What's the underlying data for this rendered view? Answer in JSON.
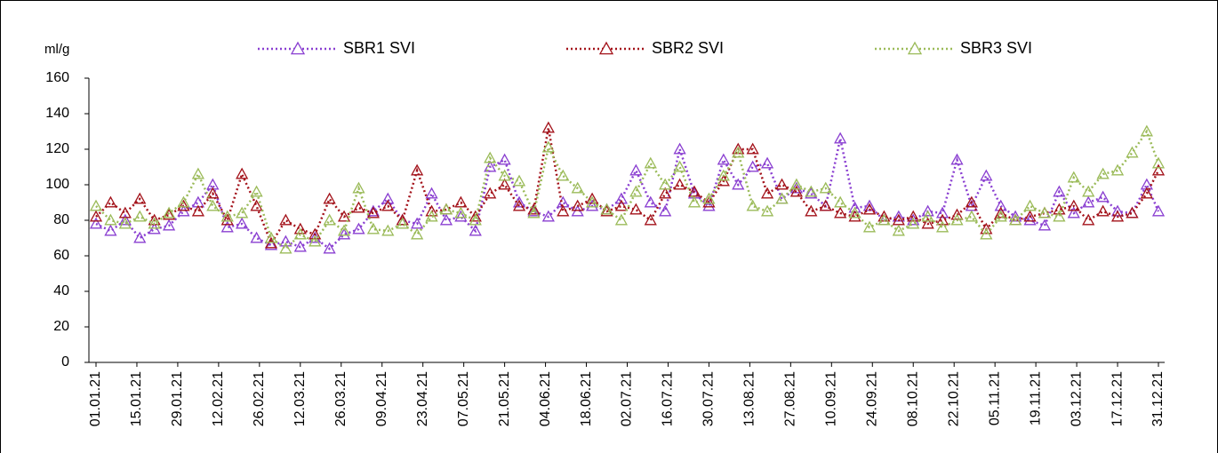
{
  "chart_data": {
    "type": "line",
    "y_label": "ml/g",
    "legend": "top",
    "grid": false,
    "ylim": [
      0,
      160
    ],
    "yticks": [
      0,
      20,
      40,
      60,
      80,
      100,
      120,
      140,
      160
    ],
    "xlim": [
      "01.01.21",
      "31.12.21"
    ],
    "xticks": [
      "01.01.21",
      "15.01.21",
      "29.01.21",
      "12.02.21",
      "26.02.21",
      "12.03.21",
      "26.03.21",
      "09.04.21",
      "23.04.21",
      "07.05.21",
      "21.05.21",
      "04.06.21",
      "18.06.21",
      "02.07.21",
      "16.07.21",
      "30.07.21",
      "13.08.21",
      "27.08.21",
      "10.09.21",
      "24.09.21",
      "08.10.21",
      "22.10.21",
      "05.11.21",
      "19.11.21",
      "03.12.21",
      "17.12.21",
      "31.12.21"
    ],
    "x": [
      "01.01.21",
      "06.01.21",
      "11.01.21",
      "16.01.21",
      "21.01.21",
      "26.01.21",
      "31.01.21",
      "05.02.21",
      "10.02.21",
      "15.02.21",
      "20.02.21",
      "25.02.21",
      "02.03.21",
      "07.03.21",
      "12.03.21",
      "17.03.21",
      "22.03.21",
      "27.03.21",
      "01.04.21",
      "06.04.21",
      "11.04.21",
      "16.04.21",
      "21.04.21",
      "26.04.21",
      "01.05.21",
      "06.05.21",
      "11.05.21",
      "16.05.21",
      "21.05.21",
      "26.05.21",
      "31.05.21",
      "05.06.21",
      "10.06.21",
      "15.06.21",
      "20.06.21",
      "25.06.21",
      "30.06.21",
      "05.07.21",
      "10.07.21",
      "15.07.21",
      "20.07.21",
      "25.07.21",
      "30.07.21",
      "04.08.21",
      "09.08.21",
      "14.08.21",
      "19.08.21",
      "24.08.21",
      "29.08.21",
      "03.09.21",
      "08.09.21",
      "13.09.21",
      "18.09.21",
      "23.09.21",
      "28.09.21",
      "03.10.21",
      "08.10.21",
      "13.10.21",
      "18.10.21",
      "23.10.21",
      "28.10.21",
      "02.11.21",
      "07.11.21",
      "12.11.21",
      "17.11.21",
      "22.11.21",
      "27.11.21",
      "02.12.21",
      "07.12.21",
      "12.12.21",
      "17.12.21",
      "22.12.21",
      "27.12.21",
      "31.12.21"
    ],
    "series": [
      {
        "name": "SBR1 SVI",
        "color": "#8a3fd1",
        "values": [
          78,
          74,
          80,
          70,
          75,
          77,
          85,
          90,
          100,
          76,
          78,
          70,
          66,
          68,
          65,
          70,
          64,
          72,
          75,
          85,
          92,
          80,
          78,
          95,
          80,
          82,
          74,
          110,
          114,
          90,
          85,
          82,
          90,
          85,
          88,
          86,
          92,
          108,
          90,
          85,
          120,
          95,
          88,
          114,
          100,
          110,
          112,
          92,
          98,
          95,
          88,
          126,
          87,
          88,
          80,
          82,
          80,
          85,
          84,
          114,
          88,
          105,
          88,
          82,
          80,
          77,
          96,
          84,
          90,
          93,
          85,
          84,
          100,
          85
        ]
      },
      {
        "name": "SBR2 SVI",
        "color": "#a3121a",
        "values": [
          82,
          90,
          84,
          92,
          80,
          83,
          88,
          85,
          95,
          80,
          106,
          88,
          67,
          80,
          75,
          72,
          92,
          82,
          87,
          84,
          88,
          80,
          108,
          85,
          86,
          90,
          82,
          95,
          100,
          88,
          86,
          132,
          85,
          88,
          92,
          85,
          88,
          86,
          80,
          95,
          100,
          96,
          90,
          102,
          120,
          120,
          95,
          100,
          96,
          85,
          88,
          84,
          82,
          86,
          82,
          80,
          82,
          78,
          80,
          83,
          90,
          75,
          84,
          80,
          82,
          84,
          86,
          88,
          80,
          85,
          82,
          84,
          95,
          108
        ]
      },
      {
        "name": "SBR3 SVI",
        "color": "#9bbb59",
        "values": [
          88,
          80,
          78,
          82,
          78,
          84,
          90,
          106,
          88,
          82,
          84,
          96,
          70,
          64,
          72,
          68,
          80,
          74,
          98,
          75,
          74,
          78,
          72,
          82,
          86,
          84,
          80,
          115,
          105,
          102,
          84,
          121,
          105,
          98,
          90,
          86,
          80,
          96,
          112,
          100,
          110,
          90,
          92,
          105,
          118,
          88,
          85,
          92,
          100,
          96,
          98,
          90,
          84,
          76,
          80,
          74,
          78,
          82,
          76,
          80,
          82,
          72,
          82,
          80,
          88,
          84,
          82,
          104,
          96,
          106,
          108,
          118,
          130,
          112
        ]
      }
    ]
  }
}
